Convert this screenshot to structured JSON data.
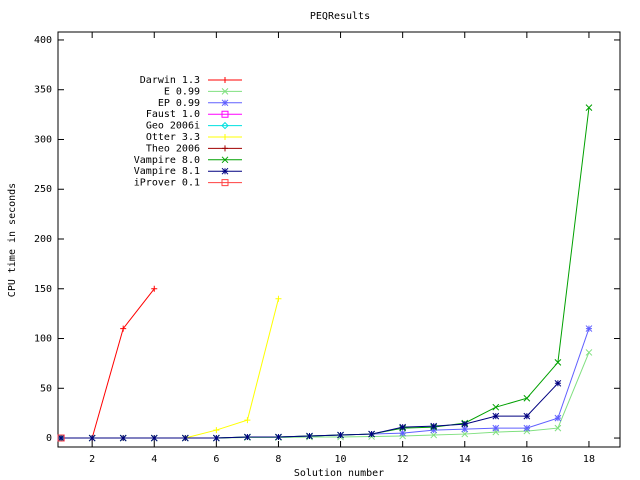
{
  "chart_data": {
    "type": "line",
    "title": "PEQResults",
    "x_label": "Solution number",
    "y_label": "CPU time in seconds",
    "xlim": [
      0.9,
      19
    ],
    "ylim": [
      -9,
      408
    ],
    "xticks": [
      2,
      4,
      6,
      8,
      10,
      12,
      14,
      16,
      18
    ],
    "yticks": [
      0,
      50,
      100,
      150,
      200,
      250,
      300,
      350,
      400
    ],
    "legend": "upper-left",
    "series": [
      {
        "name": "Darwin 1.3",
        "color": "#ff0000",
        "marker": "plus",
        "x": [
          1,
          2,
          3,
          4
        ],
        "values": [
          0,
          0,
          110,
          150
        ]
      },
      {
        "name": "E 0.99",
        "color": "#80e080",
        "marker": "cross",
        "x": [
          1,
          2,
          3,
          4,
          5,
          6,
          7,
          8,
          9,
          10,
          11,
          12,
          13,
          14,
          15,
          16,
          17,
          18
        ],
        "values": [
          0,
          0,
          0,
          0,
          0,
          0,
          0.5,
          0.5,
          1,
          1,
          1.5,
          2,
          3,
          4,
          6,
          7,
          10,
          86
        ]
      },
      {
        "name": "EP 0.99",
        "color": "#6060ff",
        "marker": "star",
        "x": [
          1,
          2,
          3,
          4,
          5,
          6,
          7,
          8,
          9,
          10,
          11,
          12,
          13,
          14,
          15,
          16,
          17,
          18
        ],
        "values": [
          0,
          0,
          0,
          0,
          0,
          0,
          1,
          1,
          2,
          3,
          4,
          5,
          8,
          9,
          10,
          10,
          20,
          110
        ]
      },
      {
        "name": "Faust 1.0",
        "color": "#ff00ff",
        "marker": "square",
        "x": [
          1
        ],
        "values": [
          0
        ]
      },
      {
        "name": "Geo 2006i",
        "color": "#00e0e0",
        "marker": "diamond",
        "x": [
          1
        ],
        "values": [
          0
        ]
      },
      {
        "name": "Otter 3.3",
        "color": "#ffff00",
        "marker": "plus",
        "x": [
          1,
          2,
          3,
          4,
          5,
          6,
          7,
          8
        ],
        "values": [
          0,
          0,
          0,
          0,
          0,
          8,
          18,
          140
        ]
      },
      {
        "name": "Theo 2006",
        "color": "#a00000",
        "marker": "plus",
        "x": [
          1,
          2
        ],
        "values": [
          0,
          0
        ]
      },
      {
        "name": "Vampire 8.0",
        "color": "#00a000",
        "marker": "cross",
        "x": [
          1,
          2,
          3,
          4,
          5,
          6,
          7,
          8,
          9,
          10,
          11,
          12,
          13,
          14,
          15,
          16,
          17,
          18
        ],
        "values": [
          0,
          0,
          0,
          0,
          0,
          0,
          1,
          1,
          2,
          3,
          4,
          10,
          11,
          15,
          31,
          40,
          76,
          332
        ]
      },
      {
        "name": "Vampire 8.1",
        "color": "#000080",
        "marker": "star",
        "x": [
          1,
          2,
          3,
          4,
          5,
          6,
          7,
          8,
          9,
          10,
          11,
          12,
          13,
          14,
          15,
          16,
          17
        ],
        "values": [
          0,
          0,
          0,
          0,
          0,
          0,
          1,
          1,
          2,
          3,
          4,
          11,
          12,
          14,
          22,
          22,
          55
        ]
      },
      {
        "name": "iProver 0.1",
        "color": "#ff4040",
        "marker": "square",
        "x": [
          1
        ],
        "values": [
          0
        ]
      }
    ]
  }
}
